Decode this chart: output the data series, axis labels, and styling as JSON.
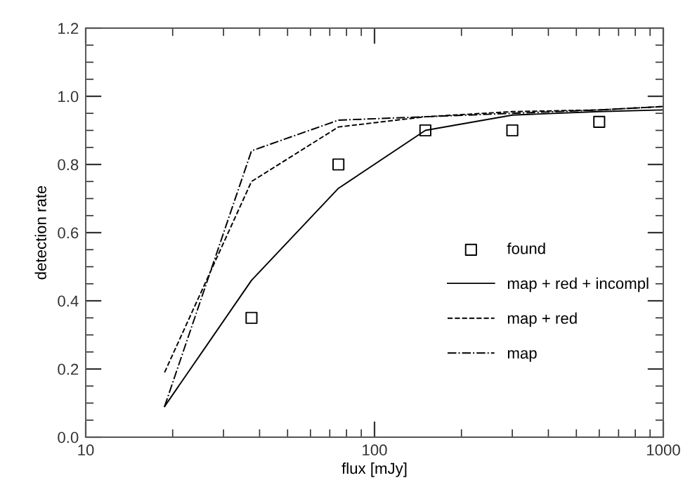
{
  "chart_data": {
    "type": "line",
    "xlabel": "flux [mJy]",
    "ylabel": "detection rate",
    "log": "x",
    "xlim": [
      10,
      1000
    ],
    "xticks": [
      10,
      100,
      1000
    ],
    "ylim": [
      0,
      1.2
    ],
    "yticks": [
      {
        "value": 0,
        "label": "0.0"
      },
      0.2,
      0.4,
      0.6,
      0.8,
      {
        "value": 1,
        "label": "1.0"
      },
      {
        "value": 1.2,
        "label": "1.2"
      }
    ],
    "grid": false,
    "legend": "right",
    "series": [
      {
        "name": "found",
        "type": "scatter",
        "marker": "square",
        "color": "#000000",
        "x": [
          37.5,
          75,
          150,
          300,
          600
        ],
        "values": [
          0.35,
          0.8,
          0.9,
          0.9,
          0.925
        ]
      },
      {
        "name": "map + red + incompl",
        "line_style": "solid",
        "color": "#000000",
        "x": [
          18.75,
          37.5,
          75,
          150,
          300,
          600,
          1000
        ],
        "values": [
          0.09,
          0.46,
          0.73,
          0.9,
          0.945,
          0.955,
          0.96
        ]
      },
      {
        "name": "map + red",
        "line_style": "dashed",
        "color": "#000000",
        "x": [
          18.75,
          37.5,
          75,
          150,
          300,
          600,
          1000
        ],
        "values": [
          0.19,
          0.75,
          0.91,
          0.94,
          0.955,
          0.96,
          0.97
        ]
      },
      {
        "name": "map",
        "line_style": "dashdot",
        "color": "#000000",
        "x": [
          18.75,
          37.5,
          75,
          150,
          300,
          600,
          1000
        ],
        "values": [
          0.09,
          0.84,
          0.93,
          0.94,
          0.95,
          0.96,
          0.97
        ]
      }
    ]
  }
}
